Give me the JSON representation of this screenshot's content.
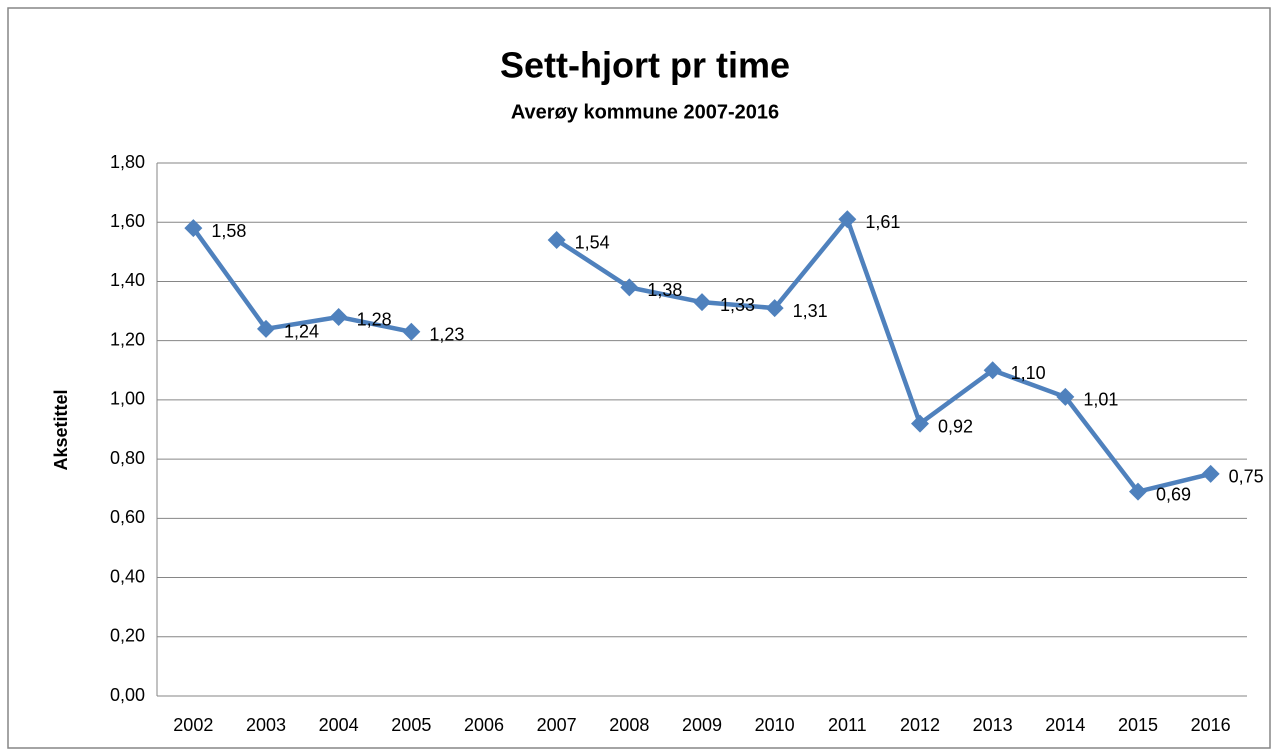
{
  "chart_data": {
    "type": "line",
    "title": "Sett-hjort pr time",
    "subtitle": "Averøy kommune 2007-2016",
    "y_label": "Aksetittel",
    "categories": [
      "2002",
      "2003",
      "2004",
      "2005",
      "2006",
      "2007",
      "2008",
      "2009",
      "2010",
      "2011",
      "2012",
      "2013",
      "2014",
      "2015",
      "2016"
    ],
    "series": [
      {
        "name": "Sett-hjort pr time",
        "color": "#4f81bd",
        "values": [
          1.58,
          1.24,
          1.28,
          1.23,
          null,
          1.54,
          1.38,
          1.33,
          1.31,
          1.61,
          0.92,
          1.1,
          1.01,
          0.69,
          0.75
        ],
        "value_labels": [
          "1,58",
          "1,24",
          "1,28",
          "1,23",
          null,
          "1,54",
          "1,38",
          "1,33",
          "1,31",
          "1,61",
          "0,92",
          "1,10",
          "1,01",
          "0,69",
          "0,75"
        ]
      }
    ],
    "ylim": [
      0,
      1.8
    ],
    "yticks": [
      {
        "value": 0,
        "label": "0,00"
      },
      {
        "value": 0.2,
        "label": "0,20"
      },
      {
        "value": 0.4,
        "label": "0,40"
      },
      {
        "value": 0.6,
        "label": "0,60"
      },
      {
        "value": 0.8,
        "label": "0,80"
      },
      {
        "value": 1.0,
        "label": "1,00"
      },
      {
        "value": 1.2,
        "label": "1,20"
      },
      {
        "value": 1.4,
        "label": "1,40"
      },
      {
        "value": 1.6,
        "label": "1,60"
      },
      {
        "value": 1.8,
        "label": "1,80"
      }
    ],
    "grid": true
  }
}
